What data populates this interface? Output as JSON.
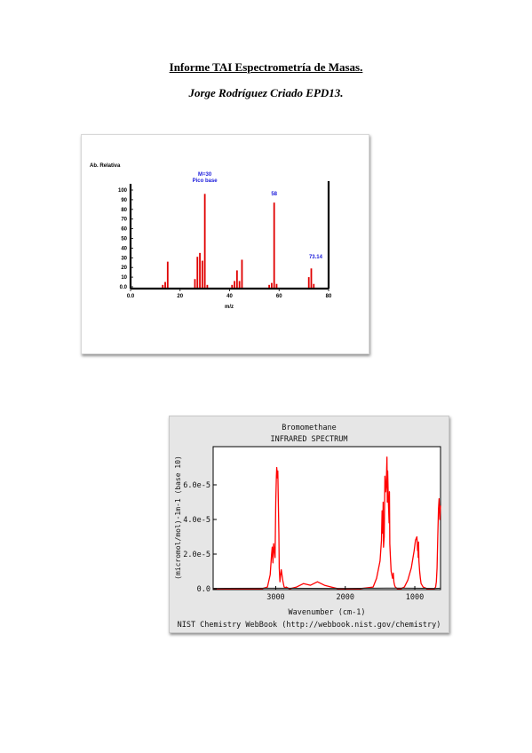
{
  "document": {
    "title": "Informe TAI Espectrometría de Masas.",
    "author": "Jorge Rodríguez Criado EPD13."
  },
  "chart_data": [
    {
      "type": "bar",
      "title": "",
      "ylabel": "Ab. Relativa",
      "xlabel": "m/z",
      "xlim": [
        0,
        80
      ],
      "ylim": [
        0,
        100
      ],
      "xticks": [
        "0.0",
        "20",
        "40",
        "60",
        "80"
      ],
      "yticks": [
        "0.0",
        "10",
        "20",
        "30",
        "40",
        "50",
        "60",
        "70",
        "80",
        "90",
        "100"
      ],
      "x": [
        13,
        14,
        15,
        26,
        27,
        28,
        29,
        30,
        31,
        41,
        42,
        43,
        44,
        45,
        56,
        57,
        58,
        59,
        72,
        73,
        74
      ],
      "values": [
        2,
        5,
        26,
        8,
        31,
        35,
        27,
        96,
        2,
        2,
        6,
        17,
        6,
        28,
        2,
        4,
        87,
        3,
        10,
        19,
        3
      ],
      "annotations": [
        {
          "text": "M=30",
          "x": 30
        },
        {
          "text": "Pico base",
          "x": 30
        },
        {
          "text": "58",
          "x": 58
        },
        {
          "text": "73.14",
          "x": 73
        }
      ]
    },
    {
      "type": "line",
      "title": "Bromomethane",
      "subtitle": "INFRARED SPECTRUM",
      "ylabel": "(micromol/mol)-1m-1 (base 10)",
      "xlabel": "Wavenumber (cm-1)",
      "footer": "NIST Chemistry WebBook (http://webbook.nist.gov/chemistry)",
      "xlim": [
        3900,
        630
      ],
      "ylim": [
        0,
        8e-05
      ],
      "xticks": [
        "3000",
        "2000",
        "1000"
      ],
      "yticks": [
        "0.0",
        "2.0e-5",
        "4.0e-5",
        "6.0e-5"
      ],
      "series": [
        {
          "color": "#ff0000",
          "x": [
            3900,
            3200,
            3120,
            3080,
            3060,
            3050,
            3040,
            3030,
            3010,
            3000,
            2990,
            2985,
            2975,
            2970,
            2955,
            2950,
            2940,
            2935,
            2920,
            2900,
            2880,
            2860,
            2850,
            2830,
            2800,
            2700,
            2600,
            2500,
            2400,
            2300,
            2200,
            2100,
            2000,
            1800,
            1600,
            1550,
            1500,
            1480,
            1470,
            1460,
            1455,
            1450,
            1440,
            1430,
            1420,
            1410,
            1400,
            1395,
            1390,
            1380,
            1370,
            1365,
            1360,
            1350,
            1340,
            1320,
            1310,
            1300,
            1290,
            1280,
            1250,
            1200,
            1150,
            1100,
            1050,
            1010,
            990,
            970,
            960,
            955,
            950,
            945,
            940,
            930,
            920,
            910,
            880,
            820,
            760,
            720,
            700,
            690,
            680,
            670,
            660,
            650,
            640,
            630
          ],
          "values": [
            0,
            0,
            1e-06,
            8e-06,
            2e-05,
            2.4e-05,
            1.5e-05,
            2.6e-05,
            1.8e-05,
            5e-05,
            6.5e-05,
            7e-05,
            6.4e-05,
            6.8e-05,
            3.2e-05,
            1.2e-05,
            4e-06,
            6e-06,
            1.1e-05,
            5e-06,
            1e-06,
            5e-07,
            1e-06,
            5e-07,
            0,
            1e-06,
            3e-06,
            2e-06,
            4e-06,
            2e-06,
            1e-06,
            0,
            0,
            0,
            1e-06,
            6e-06,
            1.6e-05,
            2.8e-05,
            4.5e-05,
            3.2e-05,
            5e-05,
            2.4e-05,
            3e-05,
            6.5e-05,
            5.6e-05,
            6e-05,
            7.6e-05,
            5e-05,
            6.8e-05,
            5e-05,
            3.8e-05,
            5.6e-05,
            2.6e-05,
            1.8e-05,
            1e-05,
            6e-06,
            9e-06,
            4e-06,
            2e-06,
            1e-06,
            0,
            0,
            1e-06,
            5e-06,
            1.2e-05,
            2.2e-05,
            2.8e-05,
            3e-05,
            2.2e-05,
            2.5e-05,
            1.8e-05,
            2.7e-05,
            1.6e-05,
            1e-05,
            6e-06,
            3e-06,
            1e-06,
            0,
            0,
            0,
            1e-06,
            4e-06,
            1.2e-05,
            3e-05,
            4.6e-05,
            5.2e-05,
            4e-05,
            4.8e-05
          ]
        },
        {
          "color": "#222222",
          "x": [
            3900,
            3000,
            2000,
            1400,
            1000,
            700,
            630
          ],
          "values": [
            2e-07,
            3e-07,
            2e-07,
            4e-07,
            3e-07,
            2e-07,
            3e-07
          ]
        }
      ]
    }
  ]
}
